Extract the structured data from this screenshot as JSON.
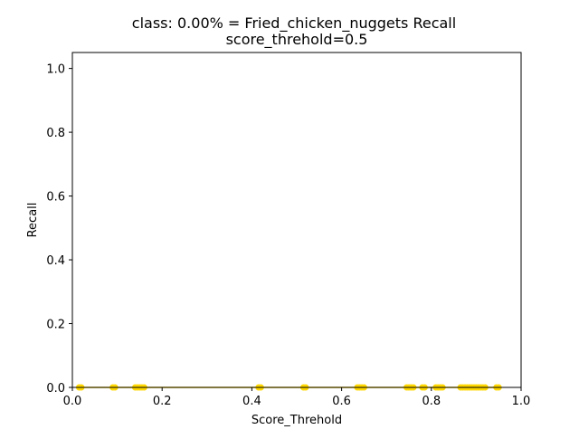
{
  "chart_data": {
    "type": "line",
    "title_line1": "class: 0.00% = Fried_chicken_nuggets Recall",
    "title_line2": "score_threhold=0.5",
    "xlabel": "Score_Threhold",
    "ylabel": "Recall",
    "xlim": [
      0.0,
      1.0
    ],
    "ylim": [
      0.0,
      1.05
    ],
    "xticks": [
      0.0,
      0.2,
      0.4,
      0.6,
      0.8,
      1.0
    ],
    "yticks": [
      0.0,
      0.2,
      0.4,
      0.6,
      0.8,
      1.0
    ],
    "xtick_labels": [
      "0.0",
      "0.2",
      "0.4",
      "0.6",
      "0.8",
      "1.0"
    ],
    "ytick_labels": [
      "0.0",
      "0.2",
      "0.4",
      "0.6",
      "0.8",
      "1.0"
    ],
    "grid": false,
    "series": [
      {
        "color": "#ffd700",
        "marker": "circle",
        "x": [
          0.015,
          0.02,
          0.09,
          0.095,
          0.14,
          0.145,
          0.15,
          0.155,
          0.16,
          0.415,
          0.42,
          0.515,
          0.52,
          0.635,
          0.64,
          0.645,
          0.65,
          0.745,
          0.75,
          0.755,
          0.76,
          0.78,
          0.785,
          0.81,
          0.815,
          0.82,
          0.825,
          0.865,
          0.87,
          0.875,
          0.88,
          0.885,
          0.89,
          0.895,
          0.9,
          0.905,
          0.91,
          0.915,
          0.92,
          0.945,
          0.95
        ],
        "y": [
          0,
          0,
          0,
          0,
          0,
          0,
          0,
          0,
          0,
          0,
          0,
          0,
          0,
          0,
          0,
          0,
          0,
          0,
          0,
          0,
          0,
          0,
          0,
          0,
          0,
          0,
          0,
          0,
          0,
          0,
          0,
          0,
          0,
          0,
          0,
          0,
          0,
          0,
          0,
          0,
          0
        ]
      }
    ]
  }
}
